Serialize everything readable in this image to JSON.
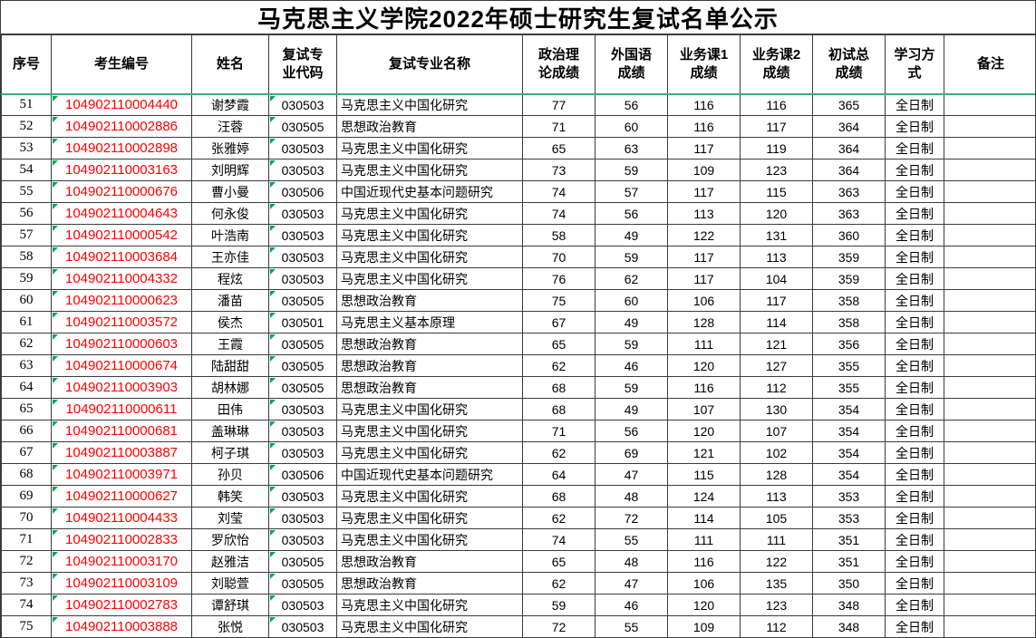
{
  "title": "马克思主义学院2022年硕士研究生复试名单公示",
  "colors": {
    "candidate_id": "#ff0000",
    "header_divider": "#38a88e",
    "error_triangle": "#00a651",
    "grid": "#3c3c3c",
    "text": "#000000",
    "background": "#ffffff"
  },
  "table": {
    "columns": [
      {
        "key": "seq",
        "label": "序号"
      },
      {
        "key": "candidate-id",
        "label": "考生编号",
        "error_indicator": true
      },
      {
        "key": "name",
        "label": "姓名"
      },
      {
        "key": "major-code",
        "label": "复试专业代码",
        "wrap": true,
        "error_indicator": true
      },
      {
        "key": "major-name",
        "label": "复试专业名称"
      },
      {
        "key": "politics-score",
        "label": "政治理论成绩",
        "wrap": true
      },
      {
        "key": "foreign-language-score",
        "label": "外国语成绩",
        "wrap": true
      },
      {
        "key": "subject1-score",
        "label": "业务课1成绩",
        "wrap": true
      },
      {
        "key": "subject2-score",
        "label": "业务课2成绩",
        "wrap": true
      },
      {
        "key": "total-score",
        "label": "初试总成绩",
        "wrap": true
      },
      {
        "key": "study-mode",
        "label": "学习方式",
        "wrap": true
      },
      {
        "key": "remarks",
        "label": "备注"
      }
    ],
    "rows": [
      [
        "51",
        "104902110004440",
        "谢梦霞",
        "030503",
        "马克思主义中国化研究",
        "77",
        "56",
        "116",
        "116",
        "365",
        "全日制",
        ""
      ],
      [
        "52",
        "104902110002886",
        "汪蓉",
        "030505",
        "思想政治教育",
        "71",
        "60",
        "116",
        "117",
        "364",
        "全日制",
        ""
      ],
      [
        "53",
        "104902110002898",
        "张雅婷",
        "030503",
        "马克思主义中国化研究",
        "65",
        "63",
        "117",
        "119",
        "364",
        "全日制",
        ""
      ],
      [
        "54",
        "104902110003163",
        "刘明辉",
        "030503",
        "马克思主义中国化研究",
        "73",
        "59",
        "109",
        "123",
        "364",
        "全日制",
        ""
      ],
      [
        "55",
        "104902110000676",
        "曹小曼",
        "030506",
        "中国近现代史基本问题研究",
        "74",
        "57",
        "117",
        "115",
        "363",
        "全日制",
        ""
      ],
      [
        "56",
        "104902110004643",
        "何永俊",
        "030503",
        "马克思主义中国化研究",
        "74",
        "56",
        "113",
        "120",
        "363",
        "全日制",
        ""
      ],
      [
        "57",
        "104902110000542",
        "叶浩南",
        "030503",
        "马克思主义中国化研究",
        "58",
        "49",
        "122",
        "131",
        "360",
        "全日制",
        ""
      ],
      [
        "58",
        "104902110003684",
        "王亦佳",
        "030503",
        "马克思主义中国化研究",
        "70",
        "59",
        "117",
        "113",
        "359",
        "全日制",
        ""
      ],
      [
        "59",
        "104902110004332",
        "程炫",
        "030503",
        "马克思主义中国化研究",
        "76",
        "62",
        "117",
        "104",
        "359",
        "全日制",
        ""
      ],
      [
        "60",
        "104902110000623",
        "潘苗",
        "030505",
        "思想政治教育",
        "75",
        "60",
        "106",
        "117",
        "358",
        "全日制",
        ""
      ],
      [
        "61",
        "104902110003572",
        "侯杰",
        "030501",
        "马克思主义基本原理",
        "67",
        "49",
        "128",
        "114",
        "358",
        "全日制",
        ""
      ],
      [
        "62",
        "104902110000603",
        "王霞",
        "030505",
        "思想政治教育",
        "65",
        "59",
        "111",
        "121",
        "356",
        "全日制",
        ""
      ],
      [
        "63",
        "104902110000674",
        "陆甜甜",
        "030505",
        "思想政治教育",
        "62",
        "46",
        "120",
        "127",
        "355",
        "全日制",
        ""
      ],
      [
        "64",
        "104902110003903",
        "胡林娜",
        "030505",
        "思想政治教育",
        "68",
        "59",
        "116",
        "112",
        "355",
        "全日制",
        ""
      ],
      [
        "65",
        "104902110000611",
        "田伟",
        "030503",
        "马克思主义中国化研究",
        "68",
        "49",
        "107",
        "130",
        "354",
        "全日制",
        ""
      ],
      [
        "66",
        "104902110000681",
        "盖琳琳",
        "030503",
        "马克思主义中国化研究",
        "71",
        "56",
        "120",
        "107",
        "354",
        "全日制",
        ""
      ],
      [
        "67",
        "104902110003887",
        "柯子琪",
        "030503",
        "马克思主义中国化研究",
        "62",
        "69",
        "121",
        "102",
        "354",
        "全日制",
        ""
      ],
      [
        "68",
        "104902110003971",
        "孙贝",
        "030506",
        "中国近现代史基本问题研究",
        "64",
        "47",
        "115",
        "128",
        "354",
        "全日制",
        ""
      ],
      [
        "69",
        "104902110000627",
        "韩笑",
        "030503",
        "马克思主义中国化研究",
        "68",
        "48",
        "124",
        "113",
        "353",
        "全日制",
        ""
      ],
      [
        "70",
        "104902110004433",
        "刘莹",
        "030503",
        "马克思主义中国化研究",
        "62",
        "72",
        "114",
        "105",
        "353",
        "全日制",
        ""
      ],
      [
        "71",
        "104902110002833",
        "罗欣怡",
        "030503",
        "马克思主义中国化研究",
        "74",
        "55",
        "111",
        "111",
        "351",
        "全日制",
        ""
      ],
      [
        "72",
        "104902110003170",
        "赵雅洁",
        "030505",
        "思想政治教育",
        "65",
        "48",
        "116",
        "122",
        "351",
        "全日制",
        ""
      ],
      [
        "73",
        "104902110003109",
        "刘聪萱",
        "030505",
        "思想政治教育",
        "62",
        "47",
        "106",
        "135",
        "350",
        "全日制",
        ""
      ],
      [
        "74",
        "104902110002783",
        "谭舒琪",
        "030503",
        "马克思主义中国化研究",
        "59",
        "46",
        "120",
        "123",
        "348",
        "全日制",
        ""
      ],
      [
        "75",
        "104902110003888",
        "张悦",
        "030503",
        "马克思主义中国化研究",
        "72",
        "55",
        "109",
        "112",
        "348",
        "全日制",
        ""
      ]
    ]
  }
}
